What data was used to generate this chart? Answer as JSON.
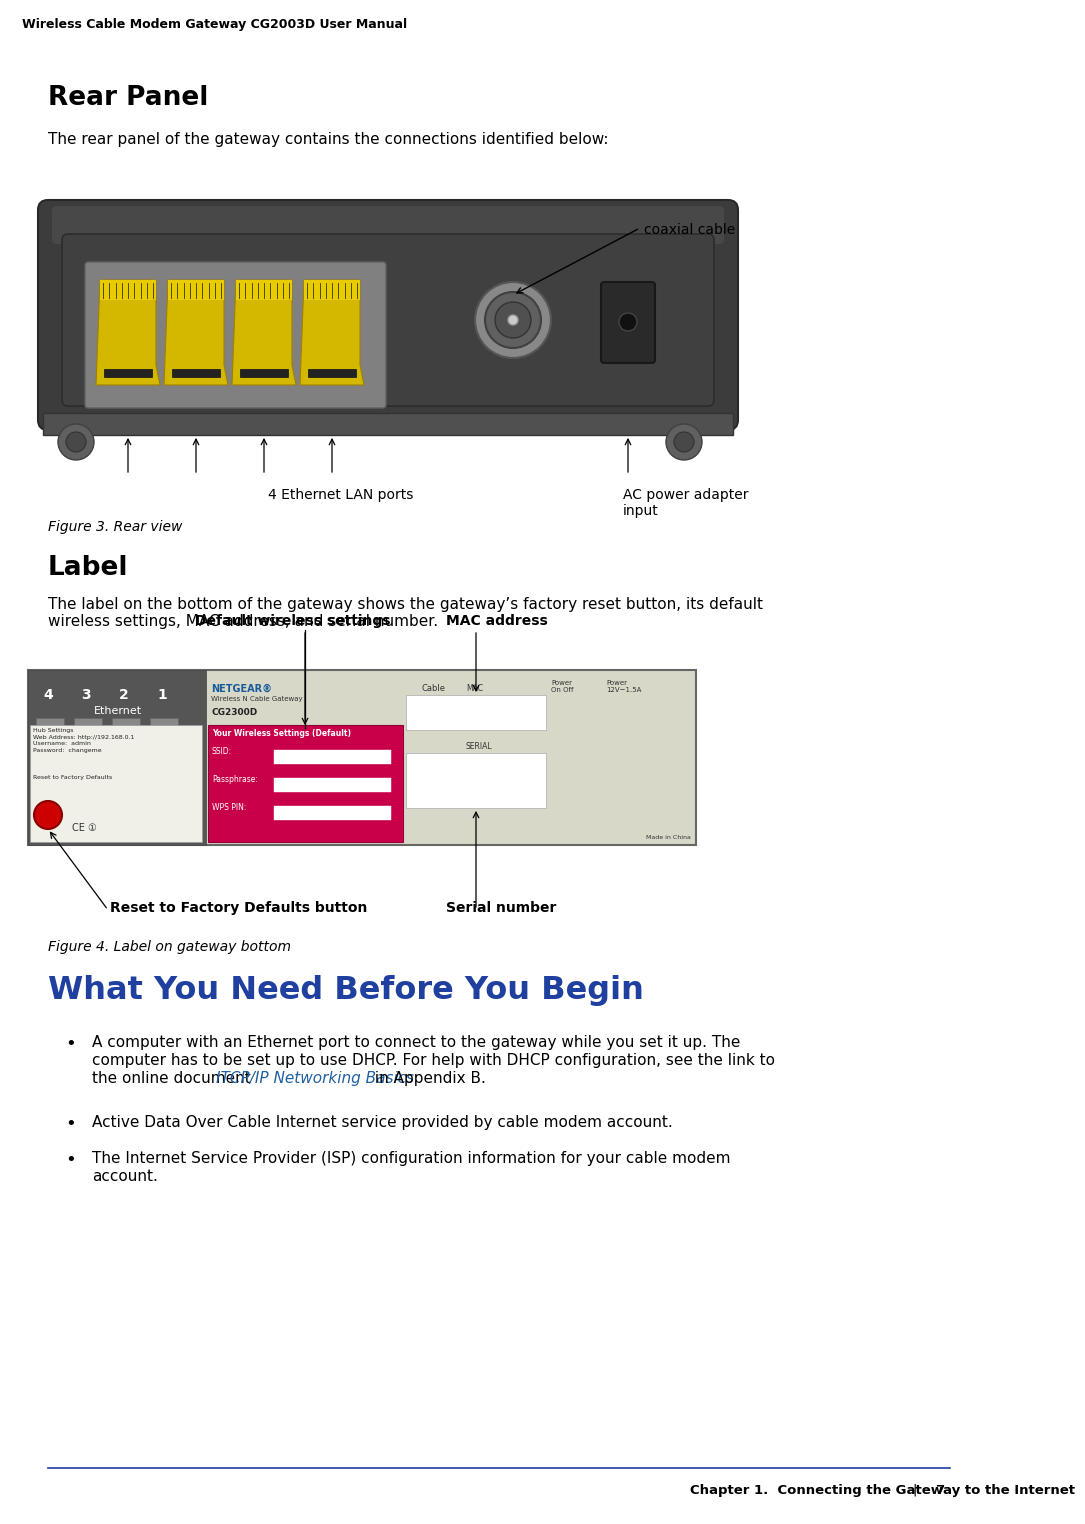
{
  "bg_color": "#ffffff",
  "header_text": "Wireless Cable Modem Gateway CG2003D User Manual",
  "footer_text": "Chapter 1.  Connecting the Gateway to the Internet",
  "footer_page": "7",
  "footer_line_color": "#2040a0",
  "section1_title": "Rear Panel",
  "section1_body": "The rear panel of the gateway contains the connections identified below:",
  "figure1_caption": "Figure 3. Rear view",
  "figure1_labels": {
    "coaxial_cable": "coaxial cable",
    "ethernet_ports": "4 Ethernet LAN ports",
    "ac_power": "AC power adapter\ninput"
  },
  "section2_title": "Label",
  "section2_body": "The label on the bottom of the gateway shows the gateway’s factory reset button, its default\nwireless settings, MAC address, and serial number.",
  "figure2_caption": "Figure 4. Label on gateway bottom",
  "figure2_labels": {
    "default_wireless": "Default wireless settings",
    "mac_address": "MAC address",
    "reset_button": "Reset to Factory Defaults button",
    "serial_number": "Serial number"
  },
  "section3_title": "What You Need Before You Begin",
  "bullet1a": "A computer with an Ethernet port to connect to the gateway while you set it up. The",
  "bullet1b": "computer has to be set up to use DHCP. For help with DHCP configuration, see the link to",
  "bullet1c": "the online document ",
  "bullet1_link": "ITCP/IP Networking Basics",
  "bullet1_end": " in Appendix B.",
  "bullet2": "Active Data Over Cable Internet service provided by cable modem account.",
  "bullet3a": "The Internet Service Provider (ISP) configuration information for your cable modem",
  "bullet3b": "account.",
  "text_color": "#000000",
  "link_color": "#2060a0",
  "title_color": "#000000",
  "section3_color": "#2040a0",
  "router_body_color": "#3c3c3c",
  "router_dark": "#282828",
  "router_mid": "#505050",
  "router_light": "#686868",
  "port_yellow": "#d4b800",
  "port_yellow_light": "#e8cc00",
  "port_bg": "#888888",
  "coax_outer": "#909090",
  "coax_inner": "#505050",
  "coax_center": "#cccccc"
}
